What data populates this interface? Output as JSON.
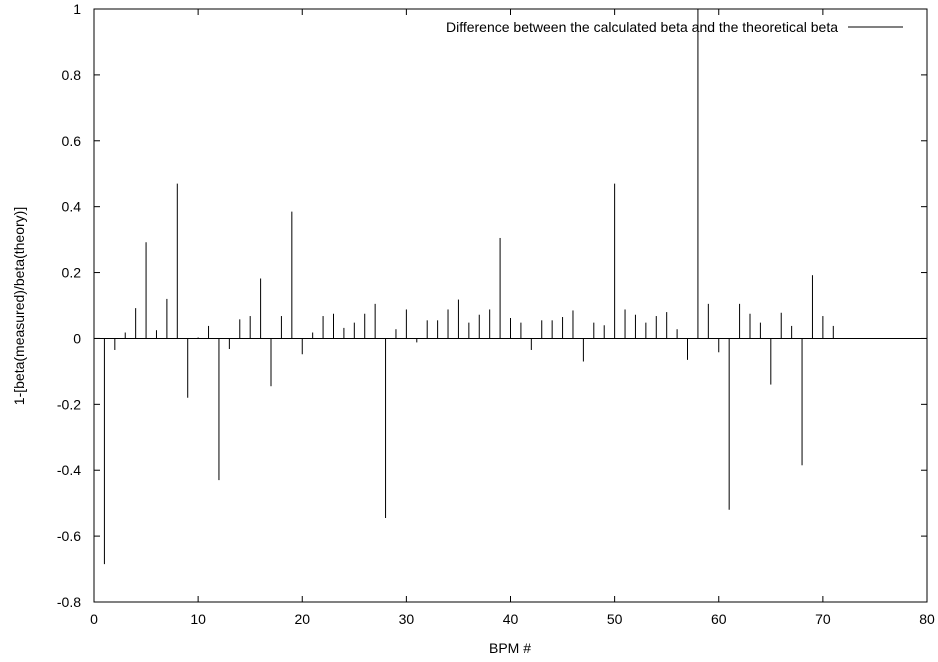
{
  "chart_data": {
    "type": "bar",
    "title": "",
    "xlabel": "BPM #",
    "ylabel": "1-[beta(measured)/beta(theory)]",
    "xlim": [
      0,
      80
    ],
    "ylim": [
      -0.8,
      1
    ],
    "xticks": [
      0,
      10,
      20,
      30,
      40,
      50,
      60,
      70,
      80
    ],
    "yticks": [
      -0.8,
      -0.6,
      -0.4,
      -0.2,
      0,
      0.2,
      0.4,
      0.6,
      0.8,
      1
    ],
    "grid": false,
    "legend_position": "top-right",
    "series": [
      {
        "name": "Difference between the calculated beta and the theoretical beta",
        "color": "#000000",
        "style": "impulses",
        "x": [
          1,
          2,
          3,
          4,
          5,
          6,
          7,
          8,
          9,
          10,
          11,
          12,
          13,
          14,
          15,
          16,
          17,
          18,
          19,
          20,
          21,
          22,
          23,
          24,
          25,
          26,
          27,
          28,
          29,
          30,
          31,
          32,
          33,
          34,
          35,
          36,
          37,
          38,
          39,
          40,
          41,
          42,
          43,
          44,
          45,
          46,
          47,
          48,
          49,
          50,
          51,
          52,
          53,
          54,
          55,
          56,
          57,
          58,
          59,
          60,
          61,
          62,
          63,
          64,
          65,
          66,
          67,
          68,
          69,
          70,
          71
        ],
        "values": [
          -0.685,
          -0.035,
          0.018,
          0.092,
          0.292,
          0.025,
          0.12,
          0.47,
          -0.18,
          0.003,
          0.038,
          -0.43,
          -0.032,
          0.058,
          0.068,
          0.182,
          -0.145,
          0.068,
          0.385,
          -0.048,
          0.018,
          0.068,
          0.075,
          0.032,
          0.048,
          0.075,
          0.105,
          -0.545,
          0.028,
          0.088,
          -0.012,
          0.055,
          0.055,
          0.088,
          0.118,
          0.048,
          0.072,
          0.088,
          0.305,
          0.062,
          0.048,
          -0.035,
          0.055,
          0.055,
          0.065,
          0.085,
          -0.07,
          0.048,
          0.04,
          0.47,
          0.088,
          0.072,
          0.048,
          0.068,
          0.08,
          0.028,
          -0.065,
          1.0,
          0.105,
          -0.042,
          -0.52,
          0.105,
          0.075,
          0.048,
          -0.14,
          0.078,
          0.038,
          -0.385,
          0.192,
          0.068,
          0.038
        ]
      }
    ]
  }
}
